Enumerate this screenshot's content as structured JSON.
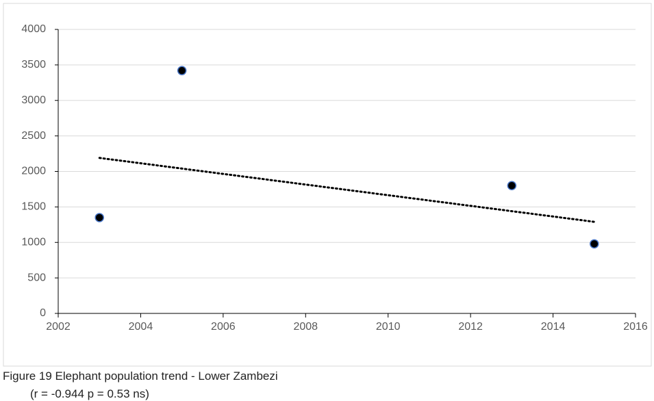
{
  "chart_data": {
    "type": "scatter",
    "x": [
      2003,
      2005,
      2013,
      2015
    ],
    "series": [
      {
        "color": "#000000",
        "values": [
          1350,
          3420,
          1800,
          980
        ]
      }
    ],
    "trendline": {
      "x": [
        2003,
        2015
      ],
      "values": [
        2190,
        1290
      ]
    },
    "xlim": [
      2002,
      2016
    ],
    "xticks": [
      2002,
      2004,
      2006,
      2008,
      2010,
      2012,
      2014,
      2016
    ],
    "ylim": [
      0,
      4000
    ],
    "yticks": [
      0,
      500,
      1000,
      1500,
      2000,
      2500,
      3000,
      3500,
      4000
    ],
    "grid": true
  },
  "caption": {
    "line1": "Figure 19 Elephant population trend - Lower Zambezi",
    "line2": "(r = -0.944 p = 0.53 ns)"
  }
}
